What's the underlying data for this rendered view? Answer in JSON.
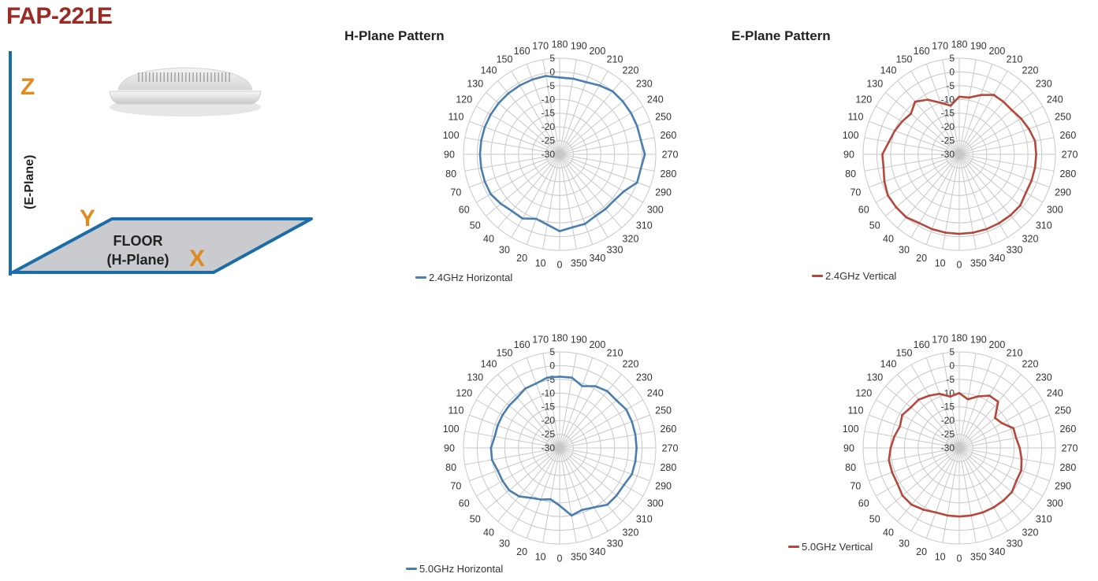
{
  "page": {
    "title": "FAP-221E"
  },
  "colors": {
    "title": "#9b2a24",
    "axis": "#1c6ca8",
    "axis_letters": "#e08a1e",
    "h_series": "#4a7eb0",
    "e_series": "#b5473b",
    "floor_fill": "#c9cbce",
    "grid": "#c8c8c8"
  },
  "diagram": {
    "z_label": "Z",
    "y_label": "Y",
    "x_label": "X",
    "e_plane_label": "(E-Plane)",
    "floor_label": "FLOOR",
    "h_plane_label": "(H-Plane)"
  },
  "headings": {
    "h_plane": "H-Plane Pattern",
    "e_plane": "E-Plane Pattern"
  },
  "chart_data": [
    {
      "type": "polar",
      "heading": "H-Plane Pattern",
      "legend": "2.4GHz Horizontal",
      "color": "#4a7eb0",
      "angle_labels": [
        "0",
        "10",
        "20",
        "30",
        "40",
        "50",
        "60",
        "70",
        "80",
        "90",
        "100",
        "110",
        "120",
        "130",
        "140",
        "150",
        "160",
        "170",
        "180",
        "190",
        "200",
        "210",
        "220",
        "230",
        "240",
        "250",
        "260",
        "270",
        "280",
        "290",
        "300",
        "310",
        "320",
        "330",
        "340",
        "350"
      ],
      "radial_labels": [
        "5",
        "0",
        "-5",
        "-10",
        "-15",
        "-20",
        "-25",
        "-30"
      ],
      "rlim": [
        -30,
        5
      ],
      "angles": [
        0,
        10,
        20,
        30,
        40,
        50,
        60,
        70,
        80,
        90,
        100,
        110,
        120,
        130,
        140,
        150,
        160,
        170,
        180,
        190,
        200,
        210,
        220,
        230,
        240,
        250,
        260,
        270,
        280,
        290,
        300,
        310,
        320,
        330,
        340,
        350
      ],
      "values": [
        -2,
        -4,
        -5,
        -3,
        -3,
        -2,
        -1,
        -1,
        -1,
        -1,
        -1,
        -1,
        -1,
        -1,
        -1,
        -1,
        -1,
        -1,
        -2,
        -2,
        -2,
        -1,
        0,
        0,
        0,
        0,
        0,
        1,
        0,
        0,
        -3,
        -4,
        -4,
        -4,
        -3,
        -3
      ]
    },
    {
      "type": "polar",
      "heading": "E-Plane Pattern",
      "legend": "2.4GHz Vertical",
      "color": "#b5473b",
      "angle_labels": [
        "0",
        "10",
        "20",
        "30",
        "40",
        "50",
        "60",
        "70",
        "80",
        "90",
        "100",
        "110",
        "120",
        "130",
        "140",
        "150",
        "160",
        "170",
        "180",
        "190",
        "200",
        "210",
        "220",
        "230",
        "240",
        "250",
        "260",
        "270",
        "280",
        "290",
        "300",
        "310",
        "320",
        "330",
        "340",
        "350"
      ],
      "radial_labels": [
        "5",
        "0",
        "-5",
        "-10",
        "-15",
        "-20",
        "-25",
        "-30"
      ],
      "rlim": [
        -30,
        5
      ],
      "angles": [
        0,
        10,
        20,
        30,
        40,
        50,
        60,
        70,
        80,
        90,
        100,
        110,
        120,
        130,
        140,
        150,
        160,
        170,
        180,
        190,
        200,
        210,
        220,
        230,
        240,
        250,
        260,
        270,
        280,
        290,
        300,
        310,
        320,
        330,
        340,
        350
      ],
      "values": [
        -1,
        -1,
        -1,
        -1,
        0,
        0,
        0,
        -1,
        -2,
        -2,
        -4,
        -5,
        -6,
        -7,
        -5,
        -7,
        -10,
        -12,
        -9,
        -9,
        -7,
        -5,
        -5,
        -5,
        -4,
        -3,
        -2,
        -2,
        -2,
        -2,
        -2,
        -1,
        -1,
        -1,
        -1,
        -1
      ]
    },
    {
      "type": "polar",
      "heading": "",
      "legend": "5.0GHz Horizontal",
      "color": "#4a7eb0",
      "angle_labels": [
        "0",
        "10",
        "20",
        "30",
        "40",
        "50",
        "60",
        "70",
        "80",
        "90",
        "100",
        "110",
        "120",
        "130",
        "140",
        "150",
        "160",
        "170",
        "180",
        "190",
        "200",
        "210",
        "220",
        "230",
        "240",
        "250",
        "260",
        "270",
        "280",
        "290",
        "300",
        "310",
        "320",
        "330",
        "340",
        "350"
      ],
      "radial_labels": [
        "5",
        "0",
        "-5",
        "-10",
        "-15",
        "-20",
        "-25",
        "-30"
      ],
      "rlim": [
        -30,
        5
      ],
      "angles": [
        0,
        10,
        20,
        30,
        40,
        50,
        60,
        70,
        80,
        90,
        100,
        110,
        120,
        130,
        140,
        150,
        160,
        170,
        180,
        190,
        200,
        210,
        220,
        230,
        240,
        250,
        260,
        270,
        280,
        290,
        300,
        310,
        320,
        330,
        340,
        350
      ],
      "values": [
        -9,
        -11,
        -10,
        -9,
        -7,
        -6,
        -6,
        -6,
        -5,
        -5,
        -6,
        -6,
        -6,
        -6,
        -6,
        -5,
        -5,
        -4,
        -4,
        -4,
        -6,
        -4,
        -3,
        -3,
        -2,
        -2,
        -2,
        -2,
        -2,
        -2,
        -3,
        -3,
        -3,
        -5,
        -6,
        -5
      ]
    },
    {
      "type": "polar",
      "heading": "",
      "legend": "5.0GHz Vertical",
      "color": "#b5473b",
      "angle_labels": [
        "0",
        "10",
        "20",
        "30",
        "40",
        "50",
        "60",
        "70",
        "80",
        "90",
        "100",
        "110",
        "120",
        "130",
        "140",
        "150",
        "160",
        "170",
        "180",
        "190",
        "200",
        "210",
        "220",
        "230",
        "240",
        "250",
        "260",
        "270",
        "280",
        "290",
        "300",
        "310",
        "320",
        "330",
        "340",
        "350"
      ],
      "radial_labels": [
        "5",
        "0",
        "-5",
        "-10",
        "-15",
        "-20",
        "-25",
        "-30"
      ],
      "rlim": [
        -30,
        5
      ],
      "angles": [
        0,
        10,
        20,
        30,
        40,
        50,
        60,
        70,
        80,
        90,
        100,
        110,
        120,
        130,
        140,
        150,
        160,
        170,
        180,
        190,
        200,
        210,
        220,
        230,
        240,
        250,
        260,
        270,
        280,
        290,
        300,
        310,
        320,
        330,
        340,
        350
      ],
      "values": [
        -5,
        -5,
        -5,
        -4,
        -3,
        -3,
        -4,
        -4,
        -4,
        -5,
        -6,
        -7,
        -6,
        -7,
        -7,
        -8,
        -9,
        -11,
        -10,
        -12,
        -10,
        -8,
        -8,
        -13,
        -12,
        -9,
        -9,
        -8,
        -7,
        -6,
        -6,
        -5,
        -5,
        -5,
        -5,
        -5
      ]
    }
  ]
}
